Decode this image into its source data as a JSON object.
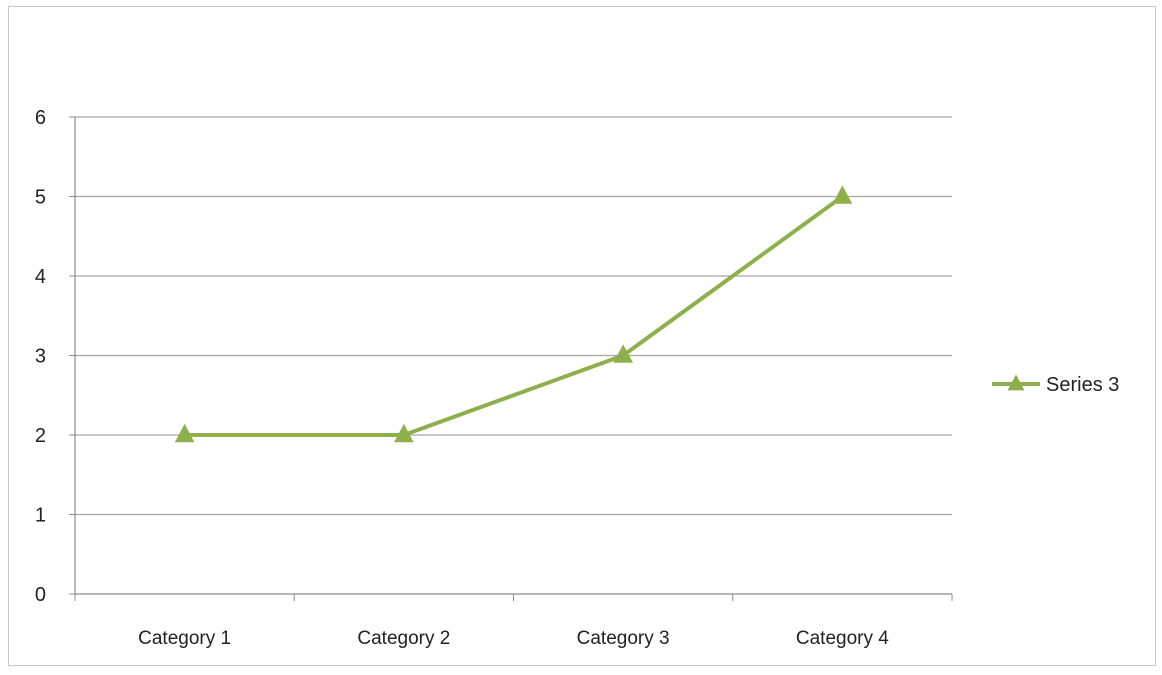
{
  "colors": {
    "series": "#8db04a",
    "grid": "#a6a6a6",
    "axis": "#8c8c8c",
    "text": "#222222"
  },
  "chart_data": {
    "type": "line",
    "title": "",
    "xlabel": "",
    "ylabel": "",
    "categories": [
      "Category 1",
      "Category 2",
      "Category 3",
      "Category 4"
    ],
    "ylim": [
      0,
      6
    ],
    "yticks": [
      "0",
      "1",
      "2",
      "3",
      "4",
      "5",
      "6"
    ],
    "grid": true,
    "legend_position": "right",
    "series": [
      {
        "name": "Series 3",
        "values": [
          2,
          2,
          3,
          5
        ],
        "marker": "triangle"
      }
    ]
  }
}
